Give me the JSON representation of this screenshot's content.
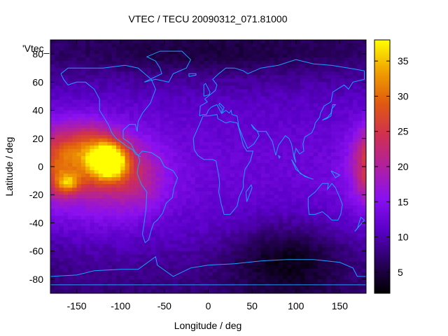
{
  "chart_data": {
    "type": "heatmap",
    "title": "VTEC / TECU 20090312_071.81000",
    "xlabel": "Longitude / deg",
    "ylabel": "Latitude / deg",
    "key_label": "'Vtec_",
    "xlim": [
      -180,
      180
    ],
    "ylim": [
      -90,
      90
    ],
    "x_ticks": [
      -150,
      -100,
      -50,
      0,
      50,
      100,
      150
    ],
    "y_ticks": [
      -80,
      -60,
      -40,
      -20,
      0,
      20,
      40,
      60,
      80
    ],
    "colorbar": {
      "range": [
        2,
        38
      ],
      "ticks": [
        5,
        10,
        15,
        20,
        25,
        30,
        35
      ],
      "palette": [
        "#000000",
        "#2a0060",
        "#5a00c8",
        "#8a10f0",
        "#b020a0",
        "#d03050",
        "#e05a10",
        "#f0a000",
        "#ffff00"
      ]
    },
    "features": [
      {
        "lon": -112,
        "lat": 4,
        "sigma_lon": 14,
        "sigma_lat": 9,
        "amp": 24
      },
      {
        "lon": -140,
        "lat": 10,
        "sigma_lon": 22,
        "sigma_lat": 14,
        "amp": 13
      },
      {
        "lon": -160,
        "lat": -12,
        "sigma_lon": 10,
        "sigma_lat": 5,
        "amp": 12
      },
      {
        "lon": -120,
        "lat": -5,
        "sigma_lon": 45,
        "sigma_lat": 22,
        "amp": 9
      },
      {
        "lon": -80,
        "lat": -10,
        "sigma_lon": 20,
        "sigma_lat": 14,
        "amp": 4
      },
      {
        "lon": 185,
        "lat": 2,
        "sigma_lon": 14,
        "sigma_lat": 18,
        "amp": 9
      },
      {
        "lon": 90,
        "lat": -65,
        "sigma_lon": 45,
        "sigma_lat": 18,
        "amp": -6
      },
      {
        "lon": 0,
        "lat": 80,
        "sigma_lon": 120,
        "sigma_lat": 10,
        "amp": -3
      }
    ],
    "grid": false,
    "colormap_accent": "#00a0ff",
    "coastline_color": "#1a9fff"
  }
}
